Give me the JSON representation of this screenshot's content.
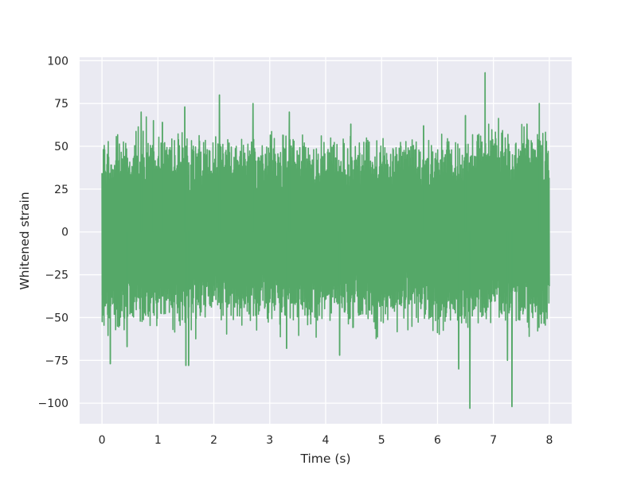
{
  "chart_data": {
    "type": "line",
    "title": "",
    "xlabel": "Time (s)",
    "ylabel": "Whitened strain",
    "xlim": [
      -0.4,
      8.4
    ],
    "ylim": [
      -112,
      102
    ],
    "x_ticks": [
      0,
      1,
      2,
      3,
      4,
      5,
      6,
      7,
      8
    ],
    "y_ticks": [
      -100,
      -75,
      -50,
      -25,
      0,
      25,
      50,
      75,
      100
    ],
    "x_tick_labels": [
      "0",
      "1",
      "2",
      "3",
      "4",
      "5",
      "6",
      "7",
      "8"
    ],
    "y_tick_labels": [
      "−100",
      "−75",
      "−50",
      "−25",
      "0",
      "25",
      "50",
      "75",
      "100"
    ],
    "grid": true,
    "background_color": "#eaeaf2",
    "grid_color": "#ffffff",
    "series": [
      {
        "color": "#55a868",
        "t_start": 0,
        "t_end": 8,
        "typical_amplitude": 45,
        "num_samples": 2000,
        "upper_envelope": [
          [
            0,
            48
          ],
          [
            0.25,
            50
          ],
          [
            0.5,
            50
          ],
          [
            0.75,
            52
          ],
          [
            1,
            50
          ],
          [
            1.5,
            50
          ],
          [
            2,
            48
          ],
          [
            2.5,
            50
          ],
          [
            3,
            50
          ],
          [
            3.5,
            50
          ],
          [
            4,
            50
          ],
          [
            4.5,
            48
          ],
          [
            5,
            48
          ],
          [
            5.5,
            50
          ],
          [
            6,
            48
          ],
          [
            6.5,
            50
          ],
          [
            7,
            55
          ],
          [
            7.5,
            55
          ],
          [
            8,
            55
          ]
        ],
        "lower_envelope": [
          [
            0,
            -50
          ],
          [
            0.25,
            -52
          ],
          [
            0.5,
            -50
          ],
          [
            0.75,
            -50
          ],
          [
            1,
            -50
          ],
          [
            1.5,
            -50
          ],
          [
            2,
            -45
          ],
          [
            2.5,
            -48
          ],
          [
            3,
            -48
          ],
          [
            3.5,
            -50
          ],
          [
            4,
            -48
          ],
          [
            4.5,
            -50
          ],
          [
            5,
            -50
          ],
          [
            5.5,
            -48
          ],
          [
            6,
            -50
          ],
          [
            6.5,
            -55
          ],
          [
            7,
            -50
          ],
          [
            7.5,
            -50
          ],
          [
            8,
            -55
          ]
        ],
        "notable_peaks": [
          {
            "x": 0.7,
            "y": 70
          },
          {
            "x": 0.92,
            "y": 65
          },
          {
            "x": 1.08,
            "y": 64
          },
          {
            "x": 1.48,
            "y": 73
          },
          {
            "x": 2.1,
            "y": 80
          },
          {
            "x": 2.7,
            "y": 75
          },
          {
            "x": 3.35,
            "y": 70
          },
          {
            "x": 4.45,
            "y": 63
          },
          {
            "x": 5.75,
            "y": 62
          },
          {
            "x": 6.5,
            "y": 68
          },
          {
            "x": 6.85,
            "y": 93
          },
          {
            "x": 7.6,
            "y": 63
          },
          {
            "x": 7.82,
            "y": 75
          }
        ],
        "notable_troughs": [
          {
            "x": 0.15,
            "y": -77
          },
          {
            "x": 0.45,
            "y": -67
          },
          {
            "x": 1.5,
            "y": -78
          },
          {
            "x": 1.55,
            "y": -78
          },
          {
            "x": 3.3,
            "y": -68
          },
          {
            "x": 4.25,
            "y": -72
          },
          {
            "x": 6.38,
            "y": -80
          },
          {
            "x": 6.58,
            "y": -103
          },
          {
            "x": 7.25,
            "y": -75
          },
          {
            "x": 7.33,
            "y": -102
          }
        ]
      }
    ]
  }
}
